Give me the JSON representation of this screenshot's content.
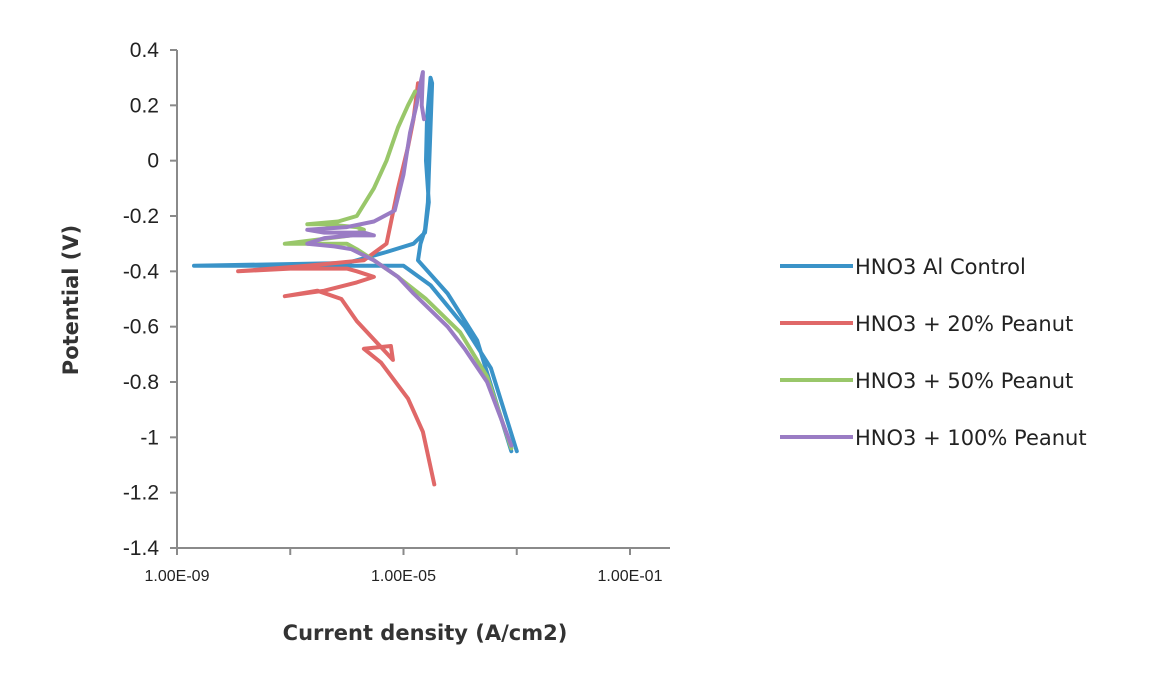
{
  "chart_data": {
    "type": "line",
    "title": "",
    "xlabel": "Current density (A/cm2)",
    "ylabel": "Potential (V)",
    "x_scale": "log",
    "xlim": [
      1e-09,
      0.1
    ],
    "ylim": [
      -1.4,
      0.4
    ],
    "y_ticks": [
      0.4,
      0.2,
      0,
      -0.2,
      -0.4,
      -0.6,
      -0.8,
      -1,
      -1.2,
      -1.4
    ],
    "y_tick_labels": [
      "0.4",
      "0.2",
      "0",
      "-0.2",
      "-0.4",
      "-0.6",
      "-0.8",
      "-1",
      "-1.2",
      "-1.4"
    ],
    "x_ticks": [
      1e-09,
      1e-05,
      0.1
    ],
    "x_tick_labels": [
      "1.00E-09",
      "1.00E-05",
      "1.00E-01"
    ],
    "grid": false,
    "legend_position": "right",
    "series": [
      {
        "name": "HNO3 Al Control",
        "color": "#3a93c8",
        "points": [
          [
            0.001,
            -1.05
          ],
          [
            0.00035,
            -0.75
          ],
          [
            0.00012,
            -0.6
          ],
          [
            3e-05,
            -0.45
          ],
          [
            1e-05,
            -0.38
          ],
          [
            1e-06,
            -0.38
          ],
          [
            2e-09,
            -0.38
          ],
          [
            1e-06,
            -0.37
          ],
          [
            5e-06,
            -0.33
          ],
          [
            1.5e-05,
            -0.3
          ],
          [
            2.4e-05,
            -0.26
          ],
          [
            2.8e-05,
            -0.15
          ],
          [
            2.5e-05,
            0.0
          ],
          [
            2.6e-05,
            0.15
          ],
          [
            3e-05,
            0.3
          ],
          [
            3.2e-05,
            0.28
          ],
          [
            3e-05,
            0.12
          ],
          [
            2.8e-05,
            -0.05
          ],
          [
            2.7e-05,
            -0.15
          ],
          [
            2.4e-05,
            -0.25
          ],
          [
            2e-05,
            -0.3
          ],
          [
            1.8e-05,
            -0.36
          ],
          [
            6e-05,
            -0.48
          ],
          [
            0.0002,
            -0.65
          ],
          [
            0.0004,
            -0.85
          ],
          [
            0.0008,
            -1.05
          ]
        ]
      },
      {
        "name": "HNO3 + 20% Peanut",
        "color": "#e06868",
        "points": [
          [
            3.5e-05,
            -1.17
          ],
          [
            2.2e-05,
            -0.98
          ],
          [
            1.2e-05,
            -0.86
          ],
          [
            4e-06,
            -0.73
          ],
          [
            2e-06,
            -0.68
          ],
          [
            6e-06,
            -0.67
          ],
          [
            6.5e-06,
            -0.72
          ],
          [
            1.5e-06,
            -0.58
          ],
          [
            8e-07,
            -0.5
          ],
          [
            3e-07,
            -0.47
          ],
          [
            8e-08,
            -0.49
          ],
          [
            4e-07,
            -0.47
          ],
          [
            1.5e-06,
            -0.44
          ],
          [
            3e-06,
            -0.42
          ],
          [
            1.5e-06,
            -0.4
          ],
          [
            1e-06,
            -0.39
          ],
          [
            1e-07,
            -0.39
          ],
          [
            1.2e-08,
            -0.4
          ],
          [
            2e-07,
            -0.38
          ],
          [
            2e-06,
            -0.36
          ],
          [
            5e-06,
            -0.3
          ],
          [
            8e-06,
            -0.1
          ],
          [
            1.2e-05,
            0.05
          ],
          [
            1.5e-05,
            0.15
          ],
          [
            1.8e-05,
            0.28
          ]
        ]
      },
      {
        "name": "HNO3 + 50% Peanut",
        "color": "#99c76a",
        "points": [
          [
            0.0008,
            -1.04
          ],
          [
            0.0003,
            -0.78
          ],
          [
            0.0001,
            -0.62
          ],
          [
            2.5e-05,
            -0.5
          ],
          [
            8e-06,
            -0.42
          ],
          [
            3e-06,
            -0.36
          ],
          [
            1.5e-06,
            -0.32
          ],
          [
            1e-06,
            -0.3
          ],
          [
            2e-07,
            -0.3
          ],
          [
            8e-08,
            -0.3
          ],
          [
            5e-07,
            -0.28
          ],
          [
            1.2e-06,
            -0.27
          ],
          [
            2e-06,
            -0.25
          ],
          [
            1.5e-06,
            -0.24
          ],
          [
            4e-07,
            -0.23
          ],
          [
            2e-07,
            -0.23
          ],
          [
            7e-07,
            -0.22
          ],
          [
            1.5e-06,
            -0.2
          ],
          [
            3e-06,
            -0.1
          ],
          [
            5e-06,
            0.0
          ],
          [
            8e-06,
            0.12
          ],
          [
            1.2e-05,
            0.2
          ],
          [
            1.6e-05,
            0.25
          ]
        ]
      },
      {
        "name": "HNO3 + 100% Peanut",
        "color": "#9a7cc4",
        "points": [
          [
            0.0008,
            -1.03
          ],
          [
            0.0003,
            -0.8
          ],
          [
            0.00012,
            -0.68
          ],
          [
            6e-05,
            -0.6
          ],
          [
            1.5e-05,
            -0.48
          ],
          [
            8e-06,
            -0.42
          ],
          [
            3e-06,
            -0.36
          ],
          [
            1.2e-06,
            -0.32
          ],
          [
            6e-07,
            -0.31
          ],
          [
            2e-07,
            -0.3
          ],
          [
            4e-07,
            -0.28
          ],
          [
            1.2e-06,
            -0.27
          ],
          [
            3e-06,
            -0.27
          ],
          [
            2e-06,
            -0.26
          ],
          [
            4e-07,
            -0.26
          ],
          [
            2e-07,
            -0.25
          ],
          [
            1e-06,
            -0.24
          ],
          [
            3e-06,
            -0.22
          ],
          [
            7e-06,
            -0.18
          ],
          [
            1e-05,
            -0.05
          ],
          [
            1.3e-05,
            0.1
          ],
          [
            1.7e-05,
            0.2
          ],
          [
            2e-05,
            0.28
          ],
          [
            2.2e-05,
            0.32
          ],
          [
            2.1e-05,
            0.2
          ],
          [
            2.3e-05,
            0.15
          ]
        ]
      }
    ]
  }
}
